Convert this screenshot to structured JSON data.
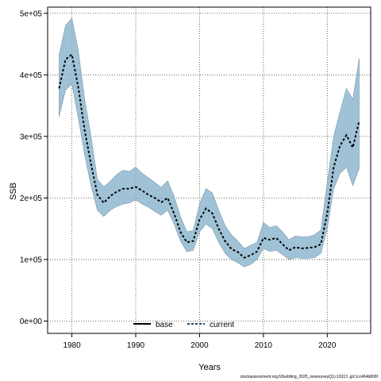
{
  "chart_data": {
    "type": "line",
    "title": "",
    "xlabel": "Years",
    "ylabel": "SSB",
    "xlim": [
      1976.2,
      2026.8
    ],
    "ylim": [
      -20000,
      510000
    ],
    "x_ticks": [
      1980,
      1990,
      2000,
      2010,
      2020
    ],
    "y_ticks": [
      0,
      100000,
      200000,
      300000,
      400000,
      500000
    ],
    "y_tick_labels": [
      "0e+00",
      "1e+05",
      "2e+05",
      "3e+05",
      "4e+05",
      "5e+05"
    ],
    "grid": true,
    "legend_placement": "bottom",
    "band_color": "#8fb7cf",
    "band_edge_color": "#7a98ab",
    "line_color": "#000000",
    "current_color": "#1c4a6e",
    "legend": [
      {
        "name": "base",
        "style": "solid",
        "color": "#000000"
      },
      {
        "name": "current",
        "style": "dashed",
        "color": "#1c4a6e"
      }
    ],
    "series": [
      {
        "name": "current",
        "x": [
          1978,
          1979,
          1980,
          1981,
          1982,
          1983,
          1984,
          1985,
          1986,
          1987,
          1988,
          1989,
          1990,
          1991,
          1992,
          1993,
          1994,
          1995,
          1996,
          1997,
          1998,
          1999,
          2000,
          2001,
          2002,
          2003,
          2004,
          2005,
          2006,
          2007,
          2008,
          2009,
          2010,
          2011,
          2012,
          2013,
          2014,
          2015,
          2016,
          2017,
          2018,
          2019,
          2020,
          2021,
          2022,
          2023,
          2024,
          2025
        ],
        "y": [
          378000,
          425000,
          433000,
          380000,
          310000,
          255000,
          205000,
          192000,
          203000,
          210000,
          215000,
          215000,
          218000,
          212000,
          205000,
          200000,
          193000,
          200000,
          175000,
          145000,
          128000,
          130000,
          165000,
          183000,
          175000,
          150000,
          130000,
          117000,
          112000,
          103000,
          107000,
          113000,
          135000,
          132000,
          135000,
          125000,
          115000,
          120000,
          118000,
          119000,
          120000,
          125000,
          175000,
          250000,
          285000,
          302000,
          282000,
          325000
        ],
        "upper": [
          432000,
          480000,
          492000,
          440000,
          360000,
          300000,
          230000,
          218000,
          227000,
          238000,
          245000,
          243000,
          250000,
          240000,
          233000,
          225000,
          217000,
          228000,
          203000,
          170000,
          145000,
          147000,
          190000,
          215000,
          208000,
          180000,
          155000,
          140000,
          130000,
          118000,
          123000,
          128000,
          160000,
          152000,
          155000,
          145000,
          132000,
          138000,
          137000,
          137000,
          140000,
          148000,
          225000,
          300000,
          340000,
          378000,
          360000,
          427000
        ],
        "lower": [
          332000,
          375000,
          385000,
          330000,
          270000,
          220000,
          180000,
          170000,
          180000,
          186000,
          190000,
          192000,
          197000,
          190000,
          185000,
          178000,
          172000,
          180000,
          158000,
          130000,
          113000,
          115000,
          145000,
          158000,
          150000,
          128000,
          110000,
          100000,
          95000,
          88000,
          92000,
          100000,
          118000,
          113000,
          115000,
          108000,
          100000,
          103000,
          102000,
          102000,
          103000,
          110000,
          150000,
          215000,
          240000,
          250000,
          220000,
          248000
        ]
      }
    ]
  },
  "footer": {
    "text": "stockassessment.org,NSwhiting_2025_newsurveyQ3,r10313 ,git:1cc464b806f"
  }
}
